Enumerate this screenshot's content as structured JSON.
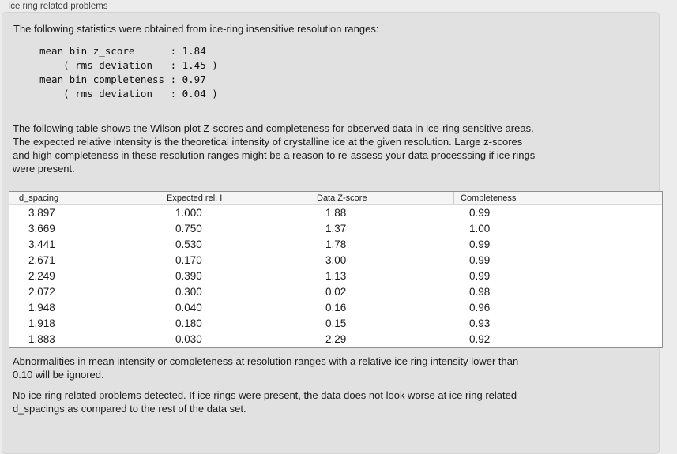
{
  "panel": {
    "title": "Ice ring related problems",
    "stats_intro": "The following statistics were obtained from ice-ring insensitive resolution ranges:",
    "stats_block": "mean bin z_score      : 1.84\n    ( rms deviation   : 1.45 )\nmean bin completeness : 0.97\n    ( rms deviation   : 0.04 )",
    "table_description": "The following table shows the Wilson plot Z-scores and completeness for observed data in ice-ring sensitive areas.\nThe expected relative intensity is the theoretical intensity of crystalline ice at the given resolution. Large z-scores\nand high completeness in these resolution ranges might be a reason to re-assess your data processsing if ice rings\nwere present.",
    "ignore_note": "Abnormalities in mean intensity or completeness at resolution ranges with a relative ice ring intensity lower than\n0.10 will be ignored.",
    "conclusion": "No ice ring related problems detected. If ice rings were present, the data does not look worse at ice ring related\nd_spacings as compared to the rest of the data set."
  },
  "table": {
    "headers": [
      "d_spacing",
      "Expected rel. I",
      "Data Z-score",
      "Completeness",
      ""
    ],
    "rows": [
      [
        "3.897",
        "1.000",
        "1.88",
        "0.99"
      ],
      [
        "3.669",
        "0.750",
        "1.37",
        "1.00"
      ],
      [
        "3.441",
        "0.530",
        "1.78",
        "0.99"
      ],
      [
        "2.671",
        "0.170",
        "3.00",
        "0.99"
      ],
      [
        "2.249",
        "0.390",
        "1.13",
        "0.99"
      ],
      [
        "2.072",
        "0.300",
        "0.02",
        "0.98"
      ],
      [
        "1.948",
        "0.040",
        "0.16",
        "0.96"
      ],
      [
        "1.918",
        "0.180",
        "0.15",
        "0.93"
      ],
      [
        "1.883",
        "0.030",
        "2.29",
        "0.92"
      ]
    ]
  },
  "colors": {
    "window_background": "#ececec",
    "panel_background": "#e1e1e1",
    "table_border": "#8f8f8f",
    "header_background": "#f5f5f5",
    "text": "#1b1b1b"
  }
}
